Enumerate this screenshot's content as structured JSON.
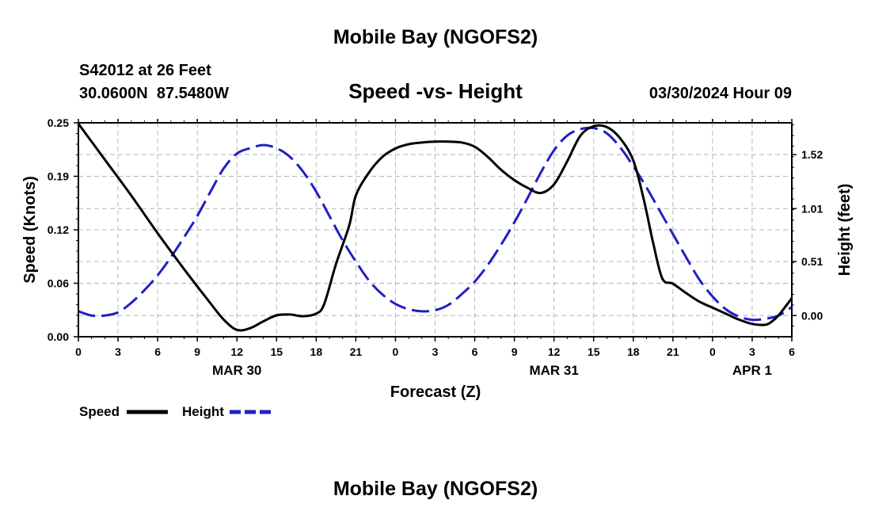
{
  "header": {
    "title": "Mobile Bay (NGOFS2)",
    "station": "S42012 at 26 Feet",
    "coords": "30.0600N  87.5480W",
    "chart_title": "Speed -vs- Height",
    "timestamp": "03/30/2024 Hour 09"
  },
  "footer": {
    "title": "Mobile Bay (NGOFS2)"
  },
  "chart_data": {
    "type": "line",
    "title": "Speed -vs- Height",
    "xlabel": "Forecast (Z)",
    "ylabel": "Speed (Knots)",
    "y2label": "Height (feet)",
    "x_unit": "hours from 00Z MAR 30",
    "xlim": [
      0,
      54
    ],
    "ylim": [
      0,
      0.25
    ],
    "y2lim": [
      -0.2,
      1.82
    ],
    "x_tick_values": [
      0,
      3,
      6,
      9,
      12,
      15,
      18,
      21,
      24,
      27,
      30,
      33,
      36,
      39,
      42,
      45,
      48,
      51,
      54
    ],
    "x_tick_labels": [
      "0",
      "3",
      "6",
      "9",
      "12",
      "15",
      "18",
      "21",
      "0",
      "3",
      "6",
      "9",
      "12",
      "15",
      "18",
      "21",
      "0",
      "3",
      "6"
    ],
    "date_labels": [
      {
        "x": 12,
        "label": "MAR 30"
      },
      {
        "x": 36,
        "label": "MAR 31"
      },
      {
        "x": 51,
        "label": "APR 1"
      }
    ],
    "y_ticks": [
      {
        "value": 0.0,
        "label": "0.00"
      },
      {
        "value": 0.0625,
        "label": "0.06"
      },
      {
        "value": 0.125,
        "label": "0.12"
      },
      {
        "value": 0.1875,
        "label": "0.19"
      },
      {
        "value": 0.25,
        "label": "0.25"
      }
    ],
    "y2_ticks": [
      {
        "value": 0.0,
        "label": "0.00"
      },
      {
        "value": 0.51,
        "label": "0.51"
      },
      {
        "value": 1.01,
        "label": "1.01"
      },
      {
        "value": 1.52,
        "label": "1.52"
      }
    ],
    "grid": true,
    "legend_position": "bottom-left",
    "series": [
      {
        "name": "Speed",
        "axis": "left",
        "color": "#000000",
        "dash": "solid",
        "x": [
          0,
          2,
          4,
          6,
          8,
          10,
          11,
          12,
          13,
          14,
          15,
          16,
          17,
          18,
          18.6,
          19.5,
          20.5,
          21,
          22,
          23,
          24,
          25,
          26,
          27,
          28,
          29,
          30,
          31,
          32,
          33,
          34,
          35,
          36,
          37,
          38,
          39,
          40,
          41,
          42,
          42.8,
          43.5,
          44.2,
          45,
          46,
          47,
          48,
          49,
          50,
          51,
          52,
          52.5,
          53,
          54
        ],
        "y": [
          0.249,
          0.207,
          0.165,
          0.121,
          0.079,
          0.039,
          0.02,
          0.008,
          0.01,
          0.018,
          0.025,
          0.026,
          0.024,
          0.027,
          0.038,
          0.085,
          0.13,
          0.165,
          0.192,
          0.21,
          0.22,
          0.225,
          0.227,
          0.228,
          0.228,
          0.227,
          0.222,
          0.21,
          0.195,
          0.183,
          0.174,
          0.168,
          0.178,
          0.205,
          0.235,
          0.246,
          0.245,
          0.232,
          0.206,
          0.16,
          0.11,
          0.068,
          0.062,
          0.051,
          0.041,
          0.034,
          0.027,
          0.02,
          0.015,
          0.014,
          0.018,
          0.025,
          0.045
        ]
      },
      {
        "name": "Height",
        "axis": "right",
        "color": "#1f1fc8",
        "dash": "dashed",
        "x": [
          0,
          1,
          2,
          3,
          4,
          5,
          6,
          7,
          8,
          9,
          10,
          11,
          12,
          13,
          14,
          15,
          16,
          17,
          18,
          19,
          20,
          21,
          22,
          23,
          24,
          25,
          26,
          27,
          28,
          29,
          30,
          31,
          32,
          33,
          34,
          35,
          36,
          37,
          38,
          39,
          40,
          41,
          42,
          43,
          44,
          45,
          46,
          47,
          48,
          49,
          50,
          51,
          52,
          53,
          54
        ],
        "y": [
          0.04,
          0.0,
          0.0,
          0.03,
          0.12,
          0.24,
          0.38,
          0.55,
          0.74,
          0.94,
          1.17,
          1.39,
          1.53,
          1.58,
          1.61,
          1.58,
          1.5,
          1.36,
          1.17,
          0.94,
          0.71,
          0.51,
          0.33,
          0.2,
          0.11,
          0.06,
          0.04,
          0.05,
          0.1,
          0.2,
          0.32,
          0.48,
          0.67,
          0.88,
          1.11,
          1.35,
          1.56,
          1.7,
          1.76,
          1.77,
          1.72,
          1.59,
          1.41,
          1.21,
          0.99,
          0.77,
          0.55,
          0.34,
          0.18,
          0.06,
          -0.01,
          -0.04,
          -0.03,
          0.0,
          0.08
        ]
      }
    ]
  }
}
